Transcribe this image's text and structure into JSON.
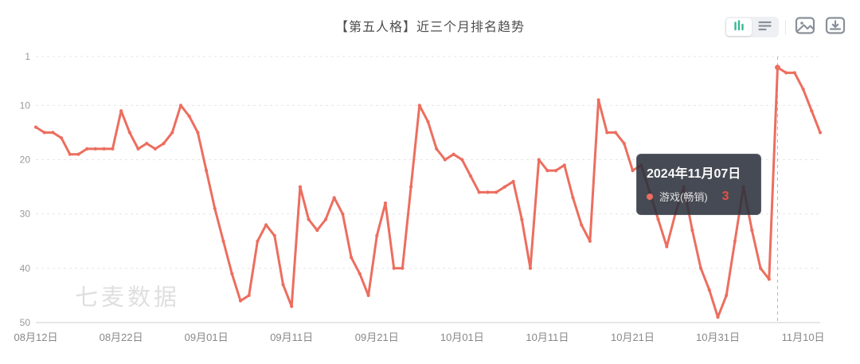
{
  "header": {
    "title": "【第五人格】近三个月排名趋势"
  },
  "toolbar": {
    "icons": {
      "toggle_active": "bar-chart-icon",
      "toggle_inactive": "list-view-icon",
      "export_image": "image-icon",
      "download": "download-icon"
    },
    "active_toggle_color": "#3ab795",
    "inactive_icon_color": "#8a9099"
  },
  "tooltip": {
    "date": "2024年11月07日",
    "series_label": "游戏(畅销)",
    "value": "3"
  },
  "watermark": "七麦数据",
  "chart_data": {
    "type": "line",
    "title": "【第五人格】近三个月排名趋势",
    "series_name": "游戏(畅销)",
    "x_start_date": "2024-08-12",
    "x_end_date": "2024-11-12",
    "x_tick_labels": [
      "08月12日",
      "08月22日",
      "09月01日",
      "09月11日",
      "09月21日",
      "10月01日",
      "10月11日",
      "10月21日",
      "10月31日",
      "11月10日"
    ],
    "x_tick_day_indices": [
      0,
      10,
      20,
      30,
      40,
      50,
      60,
      70,
      80,
      90
    ],
    "y_ticks": [
      1,
      10,
      20,
      30,
      40,
      50
    ],
    "ylim": [
      1,
      50
    ],
    "y_axis_inverted": true,
    "grid_horizontal_dashed": true,
    "legend_visible": false,
    "line_color": "#ec6e5f",
    "values": [
      14,
      15,
      15,
      16,
      19,
      19,
      18,
      18,
      18,
      18,
      11,
      15,
      18,
      17,
      18,
      17,
      15,
      10,
      12,
      15,
      22,
      29,
      35,
      41,
      46,
      45,
      35,
      32,
      34,
      43,
      47,
      25,
      31,
      33,
      31,
      27,
      30,
      38,
      41,
      45,
      34,
      28,
      40,
      40,
      25,
      10,
      13,
      18,
      20,
      19,
      20,
      23,
      26,
      26,
      26,
      25,
      24,
      31,
      40,
      20,
      22,
      22,
      21,
      27,
      32,
      35,
      9,
      15,
      15,
      17,
      22,
      21,
      26,
      31,
      36,
      30,
      25,
      33,
      40,
      44,
      49,
      45,
      35,
      25,
      33,
      40,
      42,
      3,
      4,
      4,
      7,
      11,
      15
    ],
    "highlight": {
      "day_index": 87,
      "date": "2024年11月07日",
      "value": 3
    }
  }
}
